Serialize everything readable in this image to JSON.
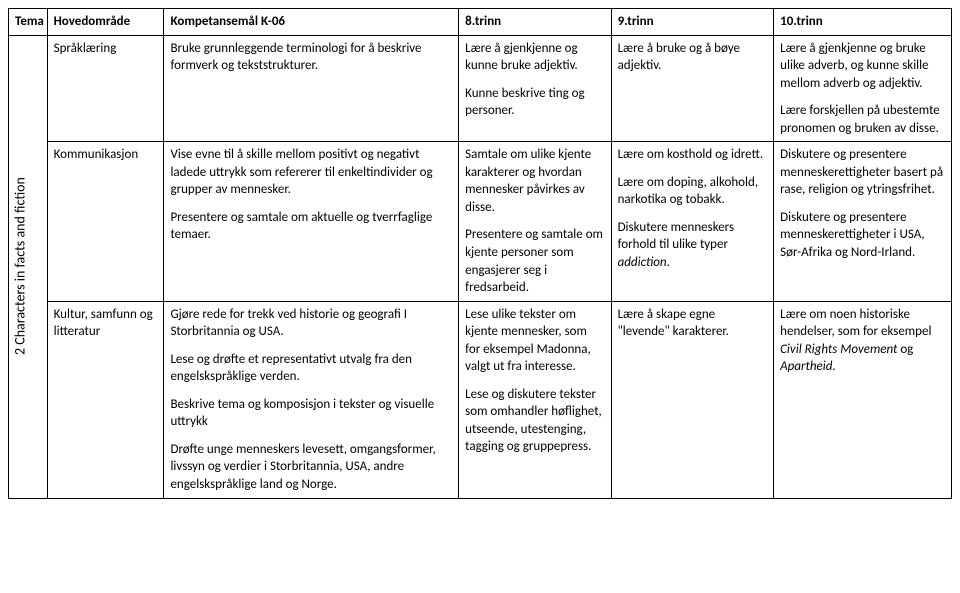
{
  "headers": {
    "tema": "Tema",
    "hovedomrade": "Hovedområde",
    "kompetansemal": "Kompetansemål K-06",
    "trinn8": "8.trinn",
    "trinn9": "9.trinn",
    "trinn10": "10.trinn"
  },
  "theme_label": "2 Characters in facts and fiction",
  "rows": [
    {
      "hovedomrade": "Språklæring",
      "kompetansemal_p": [
        "Bruke grunnleggende terminologi for å beskrive formverk og tekststrukturer."
      ],
      "t8_p": [
        "Lære å gjenkjenne og kunne bruke adjektiv.",
        "Kunne beskrive ting og personer."
      ],
      "t9_p": [
        "Lære å bruke og å bøye adjektiv."
      ],
      "t10_p": [
        "Lære å gjenkjenne og bruke ulike adverb, og kunne skille mellom adverb og adjektiv.",
        "Lære forskjellen på ubestemte pronomen og bruken av disse."
      ]
    },
    {
      "hovedomrade": "Kommunikasjon",
      "kompetansemal_p": [
        "Vise evne til å skille mellom positivt og negativt ladede uttrykk som refererer til enkeltindivider og grupper av mennesker.",
        "Presentere og samtale om aktuelle og tverrfaglige temaer."
      ],
      "t8_p": [
        "Samtale om ulike kjente karakterer og hvordan mennesker påvirkes av disse.",
        "Presentere og samtale om kjente personer som engasjerer seg i fredsarbeid."
      ],
      "t9_html": "<p>Lære om kosthold og idrett.</p><p>Lære om doping, alkohold, narkotika og tobakk.</p><p>Diskutere menneskers forhold til ulike typer <em>addiction</em>.</p>",
      "t10_p": [
        "Diskutere og presentere menneskerettigheter basert på rase, religion og ytringsfrihet.",
        "Diskutere og presentere menneskerettigheter i USA, Sør-Afrika og Nord-Irland."
      ]
    },
    {
      "hovedomrade": "Kultur, samfunn og litteratur",
      "kompetansemal_p": [
        "Gjøre rede for trekk ved historie og geografi I Storbritannia og USA.",
        "Lese og drøfte et representativt utvalg fra den engelskspråklige verden.",
        "Beskrive tema og komposisjon i tekster og visuelle uttrykk",
        "Drøfte unge menneskers levesett, omgangsformer, livssyn og verdier i Storbritannia, USA, andre engelskspråklige land og Norge."
      ],
      "t8_p": [
        "Lese ulike tekster om kjente mennesker, som for eksempel Madonna, valgt ut fra interesse.",
        "Lese og diskutere tekster som omhandler høflighet, utseende, utestenging, tagging og gruppepress."
      ],
      "t9_p": [
        "Lære å skape egne \"levende\" karakterer."
      ],
      "t10_html": "<p>Lære om noen historiske hendelser, som for eksempel <em>Civil Rights Movement</em> og <em>Apartheid</em>.</p>"
    }
  ]
}
